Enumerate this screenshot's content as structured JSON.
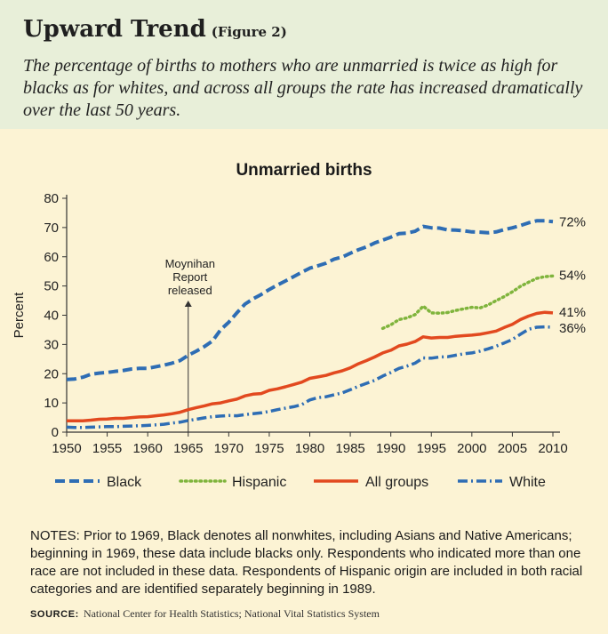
{
  "header": {
    "title": "Upward Trend",
    "figure_ref": "(Figure 2)",
    "subtitle": "The percentage of births to mothers who are unmarried is twice as high for blacks as for whites, and across all groups the rate has increased dramatically over the last 50 years."
  },
  "chart_data": {
    "type": "line",
    "title": "Unmarried births",
    "xlabel": "",
    "ylabel": "Percent",
    "xlim": [
      1950,
      2010
    ],
    "ylim": [
      0,
      80
    ],
    "xticks": [
      1950,
      1955,
      1960,
      1965,
      1970,
      1975,
      1980,
      1985,
      1990,
      1995,
      2000,
      2005,
      2010
    ],
    "yticks": [
      0,
      10,
      20,
      30,
      40,
      50,
      60,
      70,
      80
    ],
    "grid": false,
    "legend_position": "bottom",
    "annotation": {
      "lines": [
        "Moynihan",
        "Report",
        "released"
      ],
      "x": 1965
    },
    "series": [
      {
        "name": "Black",
        "color": "#2e6db4",
        "style": "dashed",
        "end_label": "72%",
        "points": [
          [
            1950,
            18
          ],
          [
            1951,
            18.2
          ],
          [
            1952,
            18.8
          ],
          [
            1953,
            19.8
          ],
          [
            1954,
            20.2
          ],
          [
            1955,
            20.4
          ],
          [
            1956,
            20.8
          ],
          [
            1957,
            21.1
          ],
          [
            1958,
            21.6
          ],
          [
            1959,
            21.8
          ],
          [
            1960,
            21.8
          ],
          [
            1961,
            22.4
          ],
          [
            1962,
            22.9
          ],
          [
            1963,
            23.6
          ],
          [
            1964,
            24.5
          ],
          [
            1965,
            26.3
          ],
          [
            1966,
            27.7
          ],
          [
            1967,
            29.3
          ],
          [
            1968,
            31.2
          ],
          [
            1969,
            35
          ],
          [
            1970,
            37.6
          ],
          [
            1971,
            40.8
          ],
          [
            1972,
            43.8
          ],
          [
            1973,
            45.6
          ],
          [
            1974,
            47.1
          ],
          [
            1975,
            48.8
          ],
          [
            1976,
            50.3
          ],
          [
            1977,
            51.7
          ],
          [
            1978,
            53.2
          ],
          [
            1979,
            54.7
          ],
          [
            1980,
            56.1
          ],
          [
            1981,
            56.9
          ],
          [
            1982,
            57.8
          ],
          [
            1983,
            59.2
          ],
          [
            1984,
            59.9
          ],
          [
            1985,
            61.2
          ],
          [
            1986,
            62.4
          ],
          [
            1987,
            63.4
          ],
          [
            1988,
            64.7
          ],
          [
            1989,
            65.7
          ],
          [
            1990,
            66.7
          ],
          [
            1991,
            67.9
          ],
          [
            1992,
            68.1
          ],
          [
            1993,
            68.7
          ],
          [
            1994,
            70.4
          ],
          [
            1995,
            69.9
          ],
          [
            1996,
            69.8
          ],
          [
            1997,
            69.2
          ],
          [
            1998,
            69.1
          ],
          [
            1999,
            68.9
          ],
          [
            2000,
            68.5
          ],
          [
            2001,
            68.4
          ],
          [
            2002,
            68.2
          ],
          [
            2003,
            68.5
          ],
          [
            2004,
            69.3
          ],
          [
            2005,
            69.9
          ],
          [
            2006,
            70.7
          ],
          [
            2007,
            71.6
          ],
          [
            2008,
            72.3
          ],
          [
            2009,
            72.3
          ],
          [
            2010,
            72
          ]
        ]
      },
      {
        "name": "Hispanic",
        "color": "#7fb43c",
        "style": "dotted",
        "end_label": "54%",
        "points": [
          [
            1989,
            35.5
          ],
          [
            1990,
            36.7
          ],
          [
            1991,
            38.5
          ],
          [
            1992,
            39.1
          ],
          [
            1993,
            40.2
          ],
          [
            1994,
            43.1
          ],
          [
            1995,
            40.8
          ],
          [
            1996,
            40.7
          ],
          [
            1997,
            40.9
          ],
          [
            1998,
            41.6
          ],
          [
            1999,
            42.2
          ],
          [
            2000,
            42.7
          ],
          [
            2001,
            42.5
          ],
          [
            2002,
            43.5
          ],
          [
            2003,
            45
          ],
          [
            2004,
            46.4
          ],
          [
            2005,
            48
          ],
          [
            2006,
            49.9
          ],
          [
            2007,
            51.3
          ],
          [
            2008,
            52.6
          ],
          [
            2009,
            53.2
          ],
          [
            2010,
            53.4
          ]
        ]
      },
      {
        "name": "All groups",
        "color": "#e2491f",
        "style": "solid",
        "end_label": "41%",
        "points": [
          [
            1950,
            3.9
          ],
          [
            1951,
            3.9
          ],
          [
            1952,
            3.9
          ],
          [
            1953,
            4.1
          ],
          [
            1954,
            4.4
          ],
          [
            1955,
            4.5
          ],
          [
            1956,
            4.7
          ],
          [
            1957,
            4.7
          ],
          [
            1958,
            5
          ],
          [
            1959,
            5.2
          ],
          [
            1960,
            5.3
          ],
          [
            1961,
            5.6
          ],
          [
            1962,
            5.9
          ],
          [
            1963,
            6.3
          ],
          [
            1964,
            6.8
          ],
          [
            1965,
            7.7
          ],
          [
            1966,
            8.4
          ],
          [
            1967,
            9
          ],
          [
            1968,
            9.7
          ],
          [
            1969,
            10
          ],
          [
            1970,
            10.7
          ],
          [
            1971,
            11.3
          ],
          [
            1972,
            12.4
          ],
          [
            1973,
            13
          ],
          [
            1974,
            13.2
          ],
          [
            1975,
            14.3
          ],
          [
            1976,
            14.8
          ],
          [
            1977,
            15.5
          ],
          [
            1978,
            16.3
          ],
          [
            1979,
            17.1
          ],
          [
            1980,
            18.4
          ],
          [
            1981,
            18.9
          ],
          [
            1982,
            19.4
          ],
          [
            1983,
            20.3
          ],
          [
            1984,
            21
          ],
          [
            1985,
            22
          ],
          [
            1986,
            23.4
          ],
          [
            1987,
            24.5
          ],
          [
            1988,
            25.7
          ],
          [
            1989,
            27.1
          ],
          [
            1990,
            28
          ],
          [
            1991,
            29.5
          ],
          [
            1992,
            30.1
          ],
          [
            1993,
            31
          ],
          [
            1994,
            32.6
          ],
          [
            1995,
            32.2
          ],
          [
            1996,
            32.4
          ],
          [
            1997,
            32.4
          ],
          [
            1998,
            32.8
          ],
          [
            1999,
            33
          ],
          [
            2000,
            33.2
          ],
          [
            2001,
            33.5
          ],
          [
            2002,
            34
          ],
          [
            2003,
            34.6
          ],
          [
            2004,
            35.8
          ],
          [
            2005,
            36.9
          ],
          [
            2006,
            38.5
          ],
          [
            2007,
            39.7
          ],
          [
            2008,
            40.6
          ],
          [
            2009,
            41
          ],
          [
            2010,
            40.8
          ]
        ]
      },
      {
        "name": "White",
        "color": "#2e6db4",
        "style": "dash-dot",
        "end_label": "36%",
        "points": [
          [
            1950,
            1.7
          ],
          [
            1951,
            1.6
          ],
          [
            1952,
            1.6
          ],
          [
            1953,
            1.7
          ],
          [
            1954,
            1.8
          ],
          [
            1955,
            1.9
          ],
          [
            1956,
            1.9
          ],
          [
            1957,
            2
          ],
          [
            1958,
            2.1
          ],
          [
            1959,
            2.2
          ],
          [
            1960,
            2.3
          ],
          [
            1961,
            2.5
          ],
          [
            1962,
            2.7
          ],
          [
            1963,
            3.1
          ],
          [
            1964,
            3.4
          ],
          [
            1965,
            4
          ],
          [
            1966,
            4.4
          ],
          [
            1967,
            4.9
          ],
          [
            1968,
            5.3
          ],
          [
            1969,
            5.5
          ],
          [
            1970,
            5.7
          ],
          [
            1971,
            5.6
          ],
          [
            1972,
            6
          ],
          [
            1973,
            6.3
          ],
          [
            1974,
            6.6
          ],
          [
            1975,
            7.1
          ],
          [
            1976,
            7.7
          ],
          [
            1977,
            8.2
          ],
          [
            1978,
            8.7
          ],
          [
            1979,
            9.4
          ],
          [
            1980,
            11
          ],
          [
            1981,
            11.8
          ],
          [
            1982,
            12.1
          ],
          [
            1983,
            12.8
          ],
          [
            1984,
            13.4
          ],
          [
            1985,
            14.5
          ],
          [
            1986,
            15.7
          ],
          [
            1987,
            16.7
          ],
          [
            1988,
            17.7
          ],
          [
            1989,
            19.2
          ],
          [
            1990,
            20.4
          ],
          [
            1991,
            21.8
          ],
          [
            1992,
            22.6
          ],
          [
            1993,
            23.6
          ],
          [
            1994,
            25.4
          ],
          [
            1995,
            25.3
          ],
          [
            1996,
            25.7
          ],
          [
            1997,
            25.8
          ],
          [
            1998,
            26.3
          ],
          [
            1999,
            26.8
          ],
          [
            2000,
            27.1
          ],
          [
            2001,
            27.7
          ],
          [
            2002,
            28.5
          ],
          [
            2003,
            29.4
          ],
          [
            2004,
            30.5
          ],
          [
            2005,
            31.7
          ],
          [
            2006,
            33.5
          ],
          [
            2007,
            35.2
          ],
          [
            2008,
            35.9
          ],
          [
            2009,
            36
          ],
          [
            2010,
            35.9
          ]
        ]
      }
    ]
  },
  "notes": "NOTES: Prior to 1969, Black denotes all nonwhites, including Asians and Native Americans; beginning in 1969, these data include blacks only. Respondents who indicated more than one race are not included in these data. Respondents of Hispanic origin are included in both racial categories and are identified separately beginning in 1989.",
  "source": {
    "label": "SOURCE:",
    "text": "National Center for Health Statistics; National Vital Statistics System"
  }
}
